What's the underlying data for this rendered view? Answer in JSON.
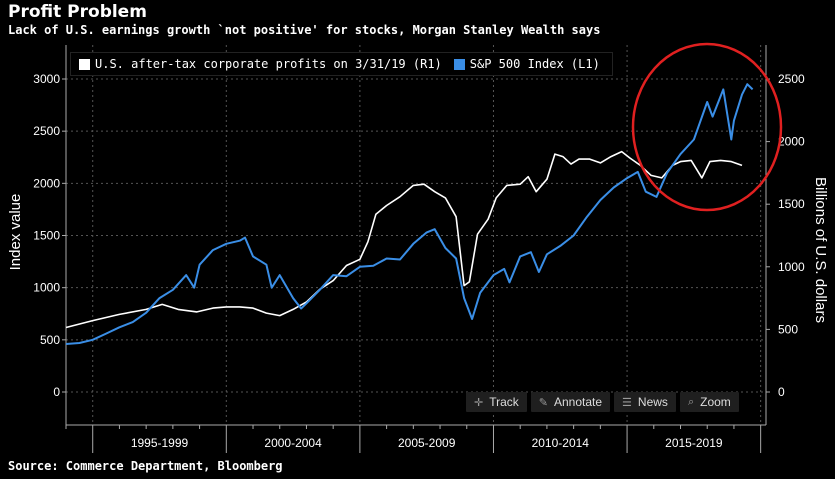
{
  "header": {
    "title": "Profit Problem",
    "subtitle": "Lack of U.S. earnings growth `not positive' for stocks, Morgan Stanley Wealth says"
  },
  "footer": {
    "source": "Source: Commerce Department, Bloomberg"
  },
  "toolbar": {
    "track_label": "Track",
    "annotate_label": "Annotate",
    "news_label": "News",
    "zoom_label": "Zoom"
  },
  "colors": {
    "spx": "#3a8ee6",
    "profits": "#ffffff",
    "circle": "#e02020",
    "grid": "#555555"
  },
  "chart_data": {
    "type": "line",
    "title": "Profit Problem",
    "subtitle": "Lack of U.S. earnings growth `not positive' for stocks, Morgan Stanley Wealth says",
    "ylabel_left": "Index value",
    "ylabel_right": "Billions of U.S. dollars",
    "ylim_left": [
      -150,
      3250
    ],
    "ylim_right": [
      -150,
      2750
    ],
    "yticks_left": [
      "0",
      "500",
      "1000",
      "1500",
      "2000",
      "2500",
      "3000"
    ],
    "yticks_right": [
      "0",
      "500",
      "1000",
      "1500",
      "2000",
      "2500"
    ],
    "x_categories": [
      "1995-1999",
      "2000-2004",
      "2005-2009",
      "2010-2014",
      "2015-2019"
    ],
    "xlim": [
      1994.0,
      2020.2
    ],
    "legend_position": "top-left",
    "grid": true,
    "annotation": "red circle around 2015-2019",
    "series": [
      {
        "name": "U.S. after-tax corporate profits on 3/31/19 (R1)",
        "axis": "right",
        "color": "#ffffff",
        "points": [
          [
            1994.0,
            515
          ],
          [
            1995.0,
            570
          ],
          [
            1996.0,
            620
          ],
          [
            1997.0,
            660
          ],
          [
            1997.6,
            700
          ],
          [
            1998.2,
            660
          ],
          [
            1998.9,
            640
          ],
          [
            1999.5,
            670
          ],
          [
            2000.0,
            680
          ],
          [
            2000.5,
            680
          ],
          [
            2001.0,
            670
          ],
          [
            2001.5,
            630
          ],
          [
            2002.0,
            610
          ],
          [
            2002.5,
            660
          ],
          [
            2003.0,
            720
          ],
          [
            2003.5,
            820
          ],
          [
            2004.0,
            890
          ],
          [
            2004.5,
            1010
          ],
          [
            2005.0,
            1060
          ],
          [
            2005.3,
            1200
          ],
          [
            2005.6,
            1420
          ],
          [
            2006.0,
            1490
          ],
          [
            2006.5,
            1560
          ],
          [
            2007.0,
            1650
          ],
          [
            2007.4,
            1660
          ],
          [
            2007.8,
            1600
          ],
          [
            2008.2,
            1550
          ],
          [
            2008.6,
            1400
          ],
          [
            2008.9,
            850
          ],
          [
            2009.1,
            880
          ],
          [
            2009.4,
            1260
          ],
          [
            2009.8,
            1380
          ],
          [
            2010.1,
            1550
          ],
          [
            2010.5,
            1650
          ],
          [
            2011.0,
            1660
          ],
          [
            2011.3,
            1720
          ],
          [
            2011.6,
            1600
          ],
          [
            2012.0,
            1700
          ],
          [
            2012.3,
            1900
          ],
          [
            2012.6,
            1880
          ],
          [
            2012.9,
            1820
          ],
          [
            2013.2,
            1860
          ],
          [
            2013.6,
            1860
          ],
          [
            2014.0,
            1830
          ],
          [
            2014.4,
            1880
          ],
          [
            2014.8,
            1920
          ],
          [
            2015.1,
            1870
          ],
          [
            2015.5,
            1810
          ],
          [
            2015.9,
            1730
          ],
          [
            2016.3,
            1710
          ],
          [
            2016.7,
            1810
          ],
          [
            2017.0,
            1840
          ],
          [
            2017.4,
            1850
          ],
          [
            2017.8,
            1710
          ],
          [
            2018.1,
            1840
          ],
          [
            2018.5,
            1850
          ],
          [
            2018.9,
            1840
          ],
          [
            2019.3,
            1810
          ]
        ]
      },
      {
        "name": "S&P 500 Index (L1)",
        "axis": "left",
        "color": "#3a8ee6",
        "points": [
          [
            1994.0,
            460
          ],
          [
            1994.5,
            470
          ],
          [
            1995.0,
            500
          ],
          [
            1995.5,
            560
          ],
          [
            1996.0,
            620
          ],
          [
            1996.5,
            670
          ],
          [
            1997.0,
            760
          ],
          [
            1997.5,
            900
          ],
          [
            1998.0,
            980
          ],
          [
            1998.5,
            1120
          ],
          [
            1998.8,
            1000
          ],
          [
            1999.0,
            1220
          ],
          [
            1999.5,
            1360
          ],
          [
            2000.0,
            1420
          ],
          [
            2000.5,
            1450
          ],
          [
            2000.7,
            1480
          ],
          [
            2001.0,
            1300
          ],
          [
            2001.5,
            1220
          ],
          [
            2001.7,
            1000
          ],
          [
            2002.0,
            1120
          ],
          [
            2002.5,
            900
          ],
          [
            2002.8,
            800
          ],
          [
            2003.0,
            850
          ],
          [
            2003.5,
            980
          ],
          [
            2004.0,
            1120
          ],
          [
            2004.5,
            1110
          ],
          [
            2005.0,
            1200
          ],
          [
            2005.5,
            1210
          ],
          [
            2006.0,
            1280
          ],
          [
            2006.5,
            1270
          ],
          [
            2007.0,
            1420
          ],
          [
            2007.5,
            1530
          ],
          [
            2007.8,
            1560
          ],
          [
            2008.2,
            1380
          ],
          [
            2008.6,
            1280
          ],
          [
            2008.9,
            900
          ],
          [
            2009.2,
            700
          ],
          [
            2009.5,
            950
          ],
          [
            2010.0,
            1120
          ],
          [
            2010.4,
            1180
          ],
          [
            2010.6,
            1050
          ],
          [
            2011.0,
            1300
          ],
          [
            2011.4,
            1340
          ],
          [
            2011.7,
            1150
          ],
          [
            2012.0,
            1320
          ],
          [
            2012.5,
            1400
          ],
          [
            2013.0,
            1500
          ],
          [
            2013.5,
            1680
          ],
          [
            2014.0,
            1840
          ],
          [
            2014.5,
            1960
          ],
          [
            2015.0,
            2050
          ],
          [
            2015.4,
            2110
          ],
          [
            2015.7,
            1920
          ],
          [
            2016.1,
            1870
          ],
          [
            2016.5,
            2100
          ],
          [
            2017.0,
            2280
          ],
          [
            2017.5,
            2420
          ],
          [
            2018.0,
            2780
          ],
          [
            2018.2,
            2640
          ],
          [
            2018.6,
            2900
          ],
          [
            2018.9,
            2420
          ],
          [
            2019.0,
            2600
          ],
          [
            2019.3,
            2850
          ],
          [
            2019.5,
            2950
          ],
          [
            2019.7,
            2900
          ]
        ]
      }
    ]
  }
}
